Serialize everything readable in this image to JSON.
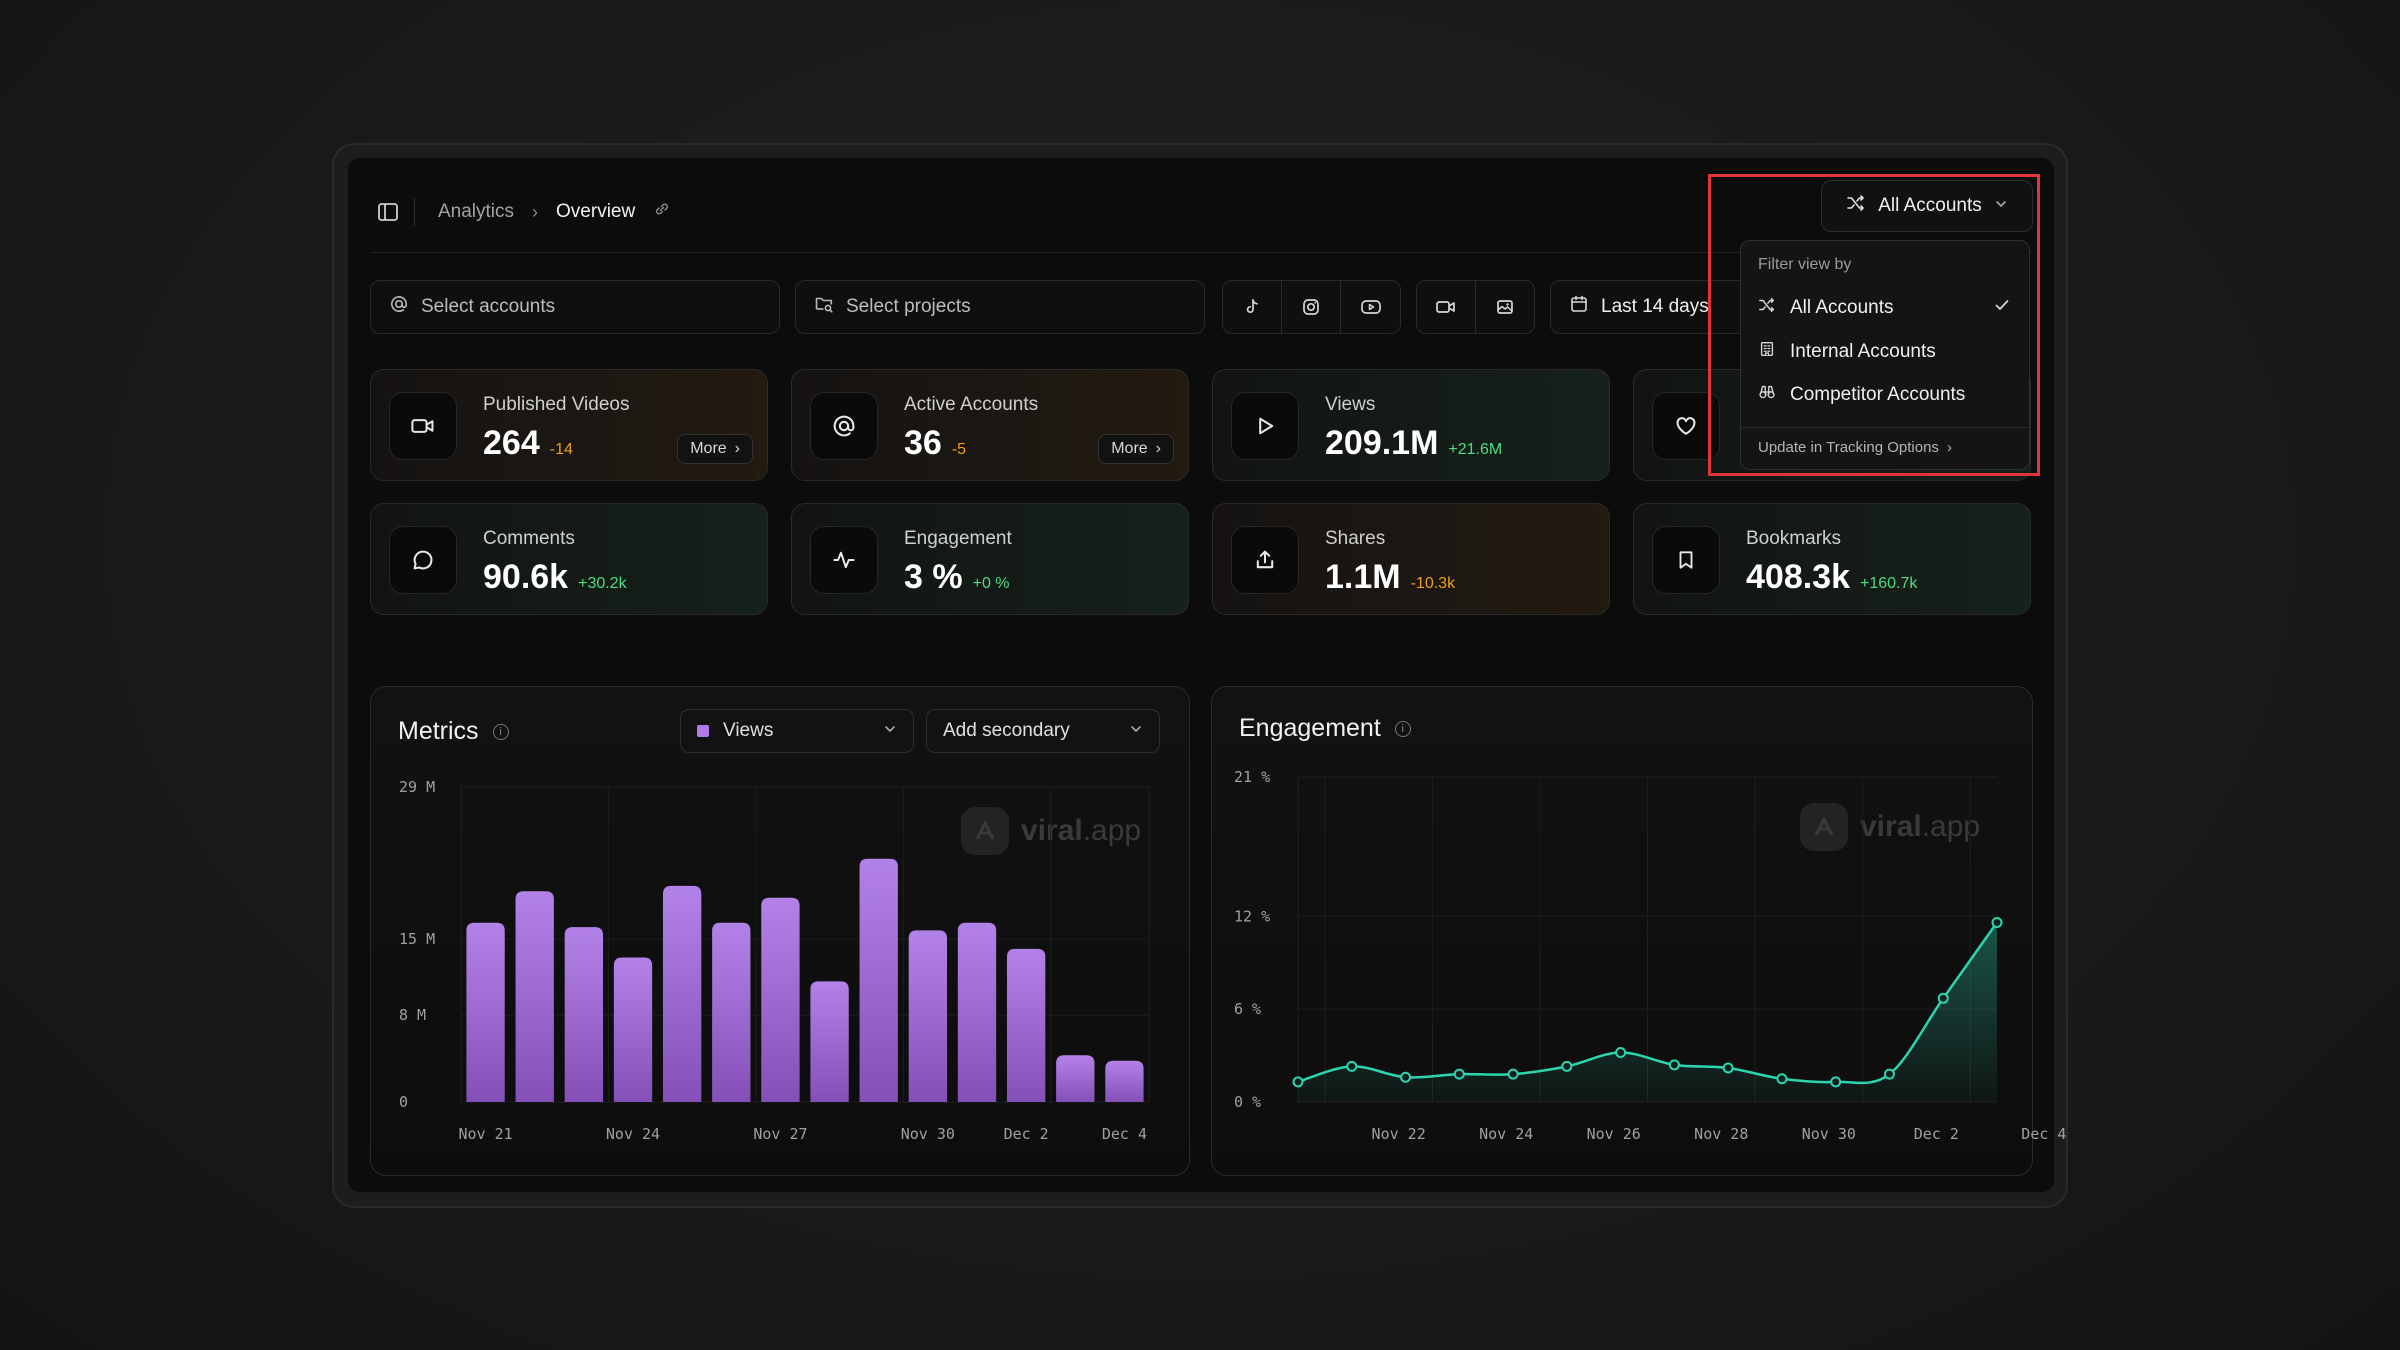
{
  "header": {
    "breadcrumb": [
      "Analytics",
      "Overview"
    ],
    "account_button": "All Accounts"
  },
  "filters": {
    "accounts_placeholder": "Select accounts",
    "projects_placeholder": "Select projects",
    "date_range": "Last 14 days"
  },
  "dropdown": {
    "heading": "Filter view by",
    "items": [
      {
        "label": "All Accounts",
        "selected": true,
        "icon": "shuffle-icon"
      },
      {
        "label": "Internal Accounts",
        "selected": false,
        "icon": "building-icon"
      },
      {
        "label": "Competitor Accounts",
        "selected": false,
        "icon": "binoculars-icon"
      }
    ],
    "footer": "Update in Tracking Options"
  },
  "stats": [
    {
      "label": "Published Videos",
      "value": "264",
      "delta": "-14",
      "more": "More",
      "icon": "video-icon"
    },
    {
      "label": "Active Accounts",
      "value": "36",
      "delta": "-5",
      "more": "More",
      "icon": "at-icon"
    },
    {
      "label": "Views",
      "value": "209.1M",
      "delta": "+21.6M",
      "icon": "play-icon"
    },
    {
      "label": "",
      "value": "",
      "delta": "",
      "icon": "heart-icon"
    },
    {
      "label": "Comments",
      "value": "90.6k",
      "delta": "+30.2k",
      "icon": "comment-icon"
    },
    {
      "label": "Engagement",
      "value": "3 %",
      "delta": "+0 %",
      "icon": "activity-icon"
    },
    {
      "label": "Shares",
      "value": "1.1M",
      "delta": "-10.3k",
      "icon": "share-icon"
    },
    {
      "label": "Bookmarks",
      "value": "408.3k",
      "delta": "+160.7k",
      "icon": "bookmark-icon"
    }
  ],
  "metrics_panel": {
    "title": "Metrics",
    "primary_select": "Views",
    "secondary_select": "Add secondary"
  },
  "engagement_panel": {
    "title": "Engagement"
  },
  "watermark": {
    "bold": "viral",
    "light": ".app"
  },
  "colors": {
    "bar": "#a06ad6",
    "line": "#2dd4b0",
    "highlight": "#e0333a"
  },
  "chart_data": [
    {
      "type": "bar",
      "title": "Metrics",
      "series": [
        {
          "name": "Views",
          "values": [
            16.5,
            19.4,
            16.1,
            13.3,
            19.9,
            16.5,
            18.8,
            11.1,
            22.4,
            15.8,
            16.5,
            14.1,
            4.3,
            3.8
          ]
        }
      ],
      "categories": [
        "Nov 21",
        "Nov 22",
        "Nov 23",
        "Nov 24",
        "Nov 25",
        "Nov 26",
        "Nov 27",
        "Nov 28",
        "Nov 29",
        "Nov 30",
        "Dec 1",
        "Dec 2",
        "Dec 3",
        "Dec 4"
      ],
      "x_tick_labels": [
        "Nov 21",
        "Nov 24",
        "Nov 27",
        "Nov 30",
        "Dec 2",
        "Dec 4"
      ],
      "y_tick_labels": [
        "0",
        "8 M",
        "15 M",
        "29 M"
      ],
      "y_ticks": [
        0,
        8,
        15,
        29
      ],
      "ylim": [
        0,
        29
      ],
      "grid": true
    },
    {
      "type": "area",
      "title": "Engagement",
      "series": [
        {
          "name": "Engagement",
          "values": [
            1.3,
            2.3,
            1.6,
            1.8,
            1.8,
            2.3,
            3.2,
            2.4,
            2.2,
            1.5,
            1.3,
            1.8,
            6.7,
            11.6
          ]
        }
      ],
      "categories": [
        "Nov 21",
        "Nov 22",
        "Nov 23",
        "Nov 24",
        "Nov 25",
        "Nov 26",
        "Nov 27",
        "Nov 28",
        "Nov 29",
        "Nov 30",
        "Dec 1",
        "Dec 2",
        "Dec 3",
        "Dec 4"
      ],
      "x_tick_labels": [
        "Nov 22",
        "Nov 24",
        "Nov 26",
        "Nov 28",
        "Nov 30",
        "Dec 2",
        "Dec 4"
      ],
      "y_tick_labels": [
        "0 %",
        "6 %",
        "12 %",
        "21 %"
      ],
      "y_ticks": [
        0,
        6,
        12,
        21
      ],
      "ylim": [
        0,
        21
      ],
      "grid": true
    }
  ]
}
